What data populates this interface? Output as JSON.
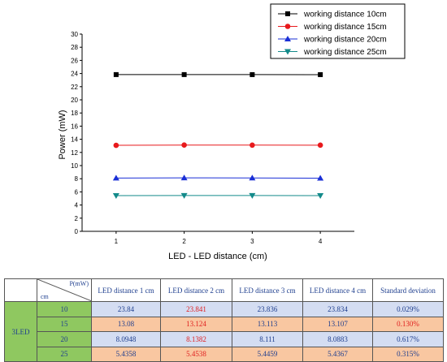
{
  "chart_data": {
    "type": "line",
    "xlabel": "LED - LED distance (cm)",
    "ylabel": "Power (mW)",
    "x": [
      1,
      2,
      3,
      4
    ],
    "xlim": [
      0.5,
      4.5
    ],
    "ylim": [
      0,
      30
    ],
    "xticks": [
      "1",
      "2",
      "3",
      "4"
    ],
    "yticks": [
      "0",
      "2",
      "4",
      "6",
      "8",
      "10",
      "12",
      "14",
      "16",
      "18",
      "20",
      "22",
      "24",
      "26",
      "28",
      "30"
    ],
    "legend_position": "top-right",
    "grid": false,
    "series": [
      {
        "name": "working distance 10cm",
        "values": [
          23.84,
          23.841,
          23.836,
          23.834
        ],
        "color": "#000000",
        "marker": "square"
      },
      {
        "name": "working distance 15cm",
        "values": [
          13.08,
          13.124,
          13.113,
          13.107
        ],
        "color": "#e8191c",
        "marker": "circle"
      },
      {
        "name": "working distance 20cm",
        "values": [
          8.0948,
          8.1382,
          8.111,
          8.0883
        ],
        "color": "#1a2fd6",
        "marker": "triangle-up"
      },
      {
        "name": "working distance 25cm",
        "values": [
          5.4358,
          5.4538,
          5.4459,
          5.4367
        ],
        "color": "#138a8a",
        "marker": "triangle-down"
      }
    ]
  },
  "table": {
    "corner_top": "P(mW)",
    "corner_bottom": "cm",
    "group_label": "3LED",
    "headers": [
      "LED distance 1 cm",
      "LED distance 2 cm",
      "LED distance 3 cm",
      "LED distance 4 cm",
      "Standard deviation"
    ],
    "rows": [
      {
        "dist": "10",
        "values": [
          "23.84",
          "23.841",
          "23.836",
          "23.834",
          "0.029%"
        ],
        "style": "blue"
      },
      {
        "dist": "15",
        "values": [
          "13.08",
          "13.124",
          "13.113",
          "13.107",
          "0.130%"
        ],
        "style": "orange"
      },
      {
        "dist": "20",
        "values": [
          "8.0948",
          "8.1382",
          "8.111",
          "8.0883",
          "0.617%"
        ],
        "style": "blue"
      },
      {
        "dist": "25",
        "values": [
          "5.4358",
          "5.4538",
          "5.4459",
          "5.4367",
          "0.315%"
        ],
        "style": "orange"
      }
    ],
    "red_cells": [
      [
        0,
        1
      ],
      [
        1,
        1
      ],
      [
        1,
        4
      ],
      [
        2,
        1
      ],
      [
        3,
        1
      ]
    ],
    "bold_cells": [
      [
        1,
        1
      ],
      [
        1,
        4
      ]
    ]
  }
}
